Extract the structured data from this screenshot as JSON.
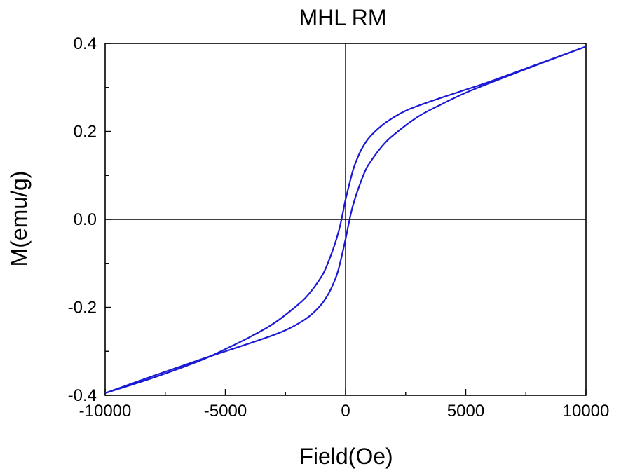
{
  "chart_data": {
    "type": "line",
    "title": "MHL RM",
    "xlabel": "Field(Oe)",
    "ylabel": "M(emu/g)",
    "xlim": [
      -10000,
      10000
    ],
    "ylim": [
      -0.4,
      0.4
    ],
    "x_ticks": [
      -10000,
      -5000,
      0,
      5000,
      10000
    ],
    "x_tick_labels": [
      "-10000",
      "-5000",
      "0",
      "5000",
      "10000"
    ],
    "y_ticks": [
      -0.4,
      -0.2,
      0.0,
      0.2,
      0.4
    ],
    "y_tick_labels": [
      "-0.4",
      "-0.2",
      "0.0",
      "0.2",
      "0.4"
    ],
    "grid": false,
    "zero_lines": true,
    "series": [
      {
        "color": "#1a1ad6",
        "x": [
          10000,
          8000,
          6000,
          5000,
          4000,
          3000,
          2500,
          2000,
          1500,
          1000,
          700,
          500,
          300,
          0,
          -100,
          -200,
          -300,
          -500,
          -800,
          -1000,
          -1500,
          -2000,
          -3000,
          -4000,
          -5000,
          -6000,
          -8000,
          -10000
        ],
        "y": [
          0.393,
          0.353,
          0.313,
          0.295,
          0.277,
          0.258,
          0.247,
          0.232,
          0.213,
          0.187,
          0.163,
          0.14,
          0.11,
          0.045,
          0.018,
          -0.008,
          -0.03,
          -0.065,
          -0.108,
          -0.13,
          -0.168,
          -0.195,
          -0.237,
          -0.268,
          -0.295,
          -0.32,
          -0.36,
          -0.395
        ]
      },
      {
        "color": "#1a1ad6",
        "x": [
          -10000,
          -8000,
          -6000,
          -5000,
          -4000,
          -3000,
          -2500,
          -2000,
          -1500,
          -1000,
          -700,
          -500,
          -300,
          0,
          100,
          200,
          300,
          500,
          800,
          1000,
          1500,
          2000,
          3000,
          4000,
          5000,
          6000,
          8000,
          10000
        ],
        "y": [
          -0.395,
          -0.356,
          -0.318,
          -0.3,
          -0.282,
          -0.263,
          -0.252,
          -0.238,
          -0.22,
          -0.193,
          -0.168,
          -0.145,
          -0.115,
          -0.045,
          -0.018,
          0.008,
          0.03,
          0.065,
          0.108,
          0.128,
          0.165,
          0.192,
          0.233,
          0.262,
          0.288,
          0.31,
          0.352,
          0.393
        ]
      }
    ]
  }
}
